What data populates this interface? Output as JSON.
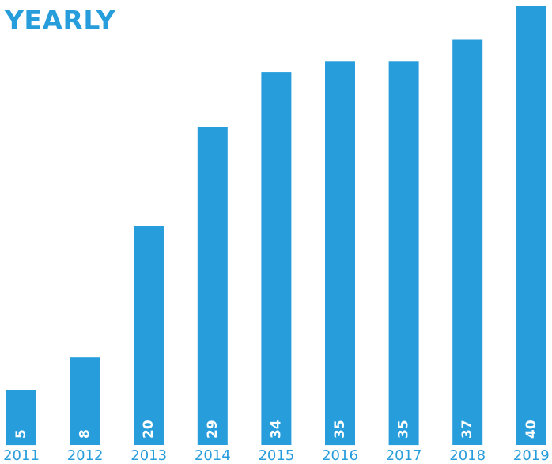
{
  "colors": {
    "bar": "#279ddb",
    "title": "#279ddb",
    "tick_text": "#279ddb",
    "value_text": "#ffffff",
    "background": "#ffffff"
  },
  "chart_data": {
    "type": "bar",
    "title": "YEARLY",
    "categories": [
      "2011",
      "2012",
      "2013",
      "2014",
      "2015",
      "2016",
      "2017",
      "2018",
      "2019"
    ],
    "values": [
      5,
      8,
      20,
      29,
      34,
      35,
      35,
      37,
      40
    ],
    "value_labels": [
      "5",
      "8",
      "20",
      "29",
      "34",
      "35",
      "35",
      "37",
      "40"
    ],
    "xlabel": "",
    "ylabel": "",
    "ylim": [
      0,
      40
    ],
    "grid": false,
    "legend": "none",
    "y_axis_visible": false
  }
}
